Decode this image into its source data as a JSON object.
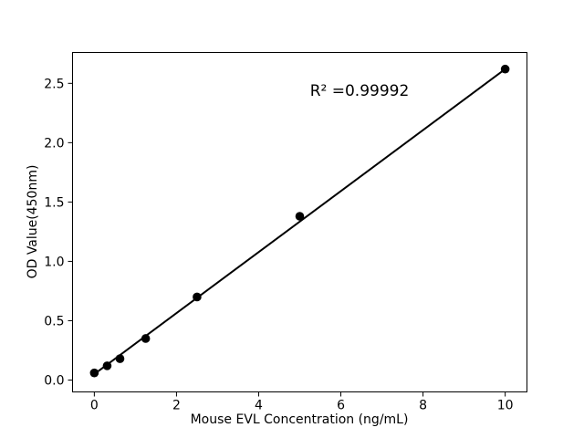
{
  "chart_data": {
    "type": "scatter",
    "title": "",
    "xlabel": "Mouse EVL Concentration (ng/mL)",
    "ylabel": "OD Value(450nm)",
    "annotation": "R² =0.99992",
    "annotation_pos_data_coords": [
      6.45,
      2.45
    ],
    "x_tick_values": [
      0,
      2,
      4,
      6,
      8,
      10
    ],
    "x_tick_labels": [
      "0",
      "2",
      "4",
      "6",
      "8",
      "10"
    ],
    "y_tick_values": [
      0.0,
      0.5,
      1.0,
      1.5,
      2.0,
      2.5
    ],
    "y_tick_labels": [
      "0.0",
      "0.5",
      "1.0",
      "1.5",
      "2.0",
      "2.5"
    ],
    "xlim": [
      -0.53,
      10.53
    ],
    "ylim": [
      -0.1,
      2.76
    ],
    "grid": false,
    "legend": "none",
    "points": [
      [
        0,
        0.06
      ],
      [
        0.3125,
        0.12
      ],
      [
        0.625,
        0.18
      ],
      [
        1.25,
        0.35
      ],
      [
        2.5,
        0.7
      ],
      [
        5,
        1.38
      ],
      [
        10,
        2.62
      ]
    ],
    "fit_line": {
      "x1": 0,
      "y1": 0.05,
      "x2": 10,
      "y2": 2.62
    },
    "marker_color": "#000000",
    "line_color": "#000000",
    "axis_color": "#000000",
    "text_color": "#000000",
    "background_color": "#ffffff"
  }
}
